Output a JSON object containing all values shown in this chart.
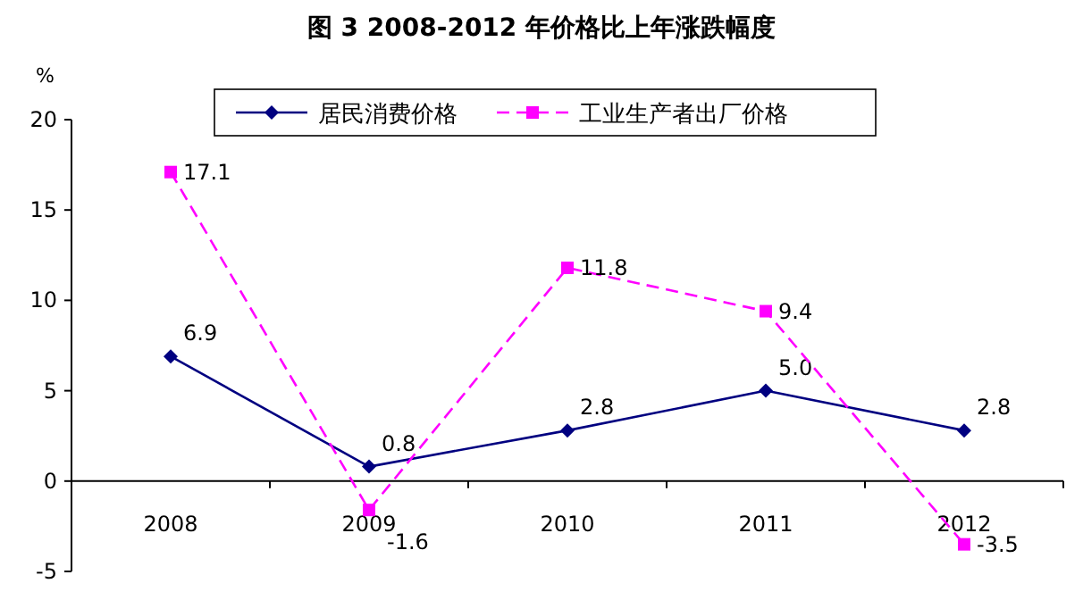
{
  "chart_data": {
    "type": "line",
    "title": "图 3 2008-2012 年价格比上年涨跌幅度",
    "ylabel": "%",
    "categories": [
      "2008",
      "2009",
      "2010",
      "2011",
      "2012"
    ],
    "series": [
      {
        "name": "居民消费价格",
        "color": "#000080",
        "values": [
          6.9,
          0.8,
          2.8,
          5.0,
          2.8
        ],
        "value_labels": [
          "6.9",
          "0.8",
          "2.8",
          "5.0",
          "2.8"
        ],
        "marker": "diamond",
        "line_style": "solid"
      },
      {
        "name": "工业生产者出厂价格",
        "color": "#ff00ff",
        "values": [
          17.1,
          -1.6,
          11.8,
          9.4,
          -3.5
        ],
        "value_labels": [
          "17.1",
          "-1.6",
          "11.8",
          "9.4",
          "-3.5"
        ],
        "marker": "square",
        "line_style": "dashed"
      }
    ],
    "ylim": [
      -5,
      20
    ],
    "yticks": [
      -5,
      0,
      5,
      10,
      15,
      20
    ],
    "grid": false,
    "legend": "top"
  }
}
